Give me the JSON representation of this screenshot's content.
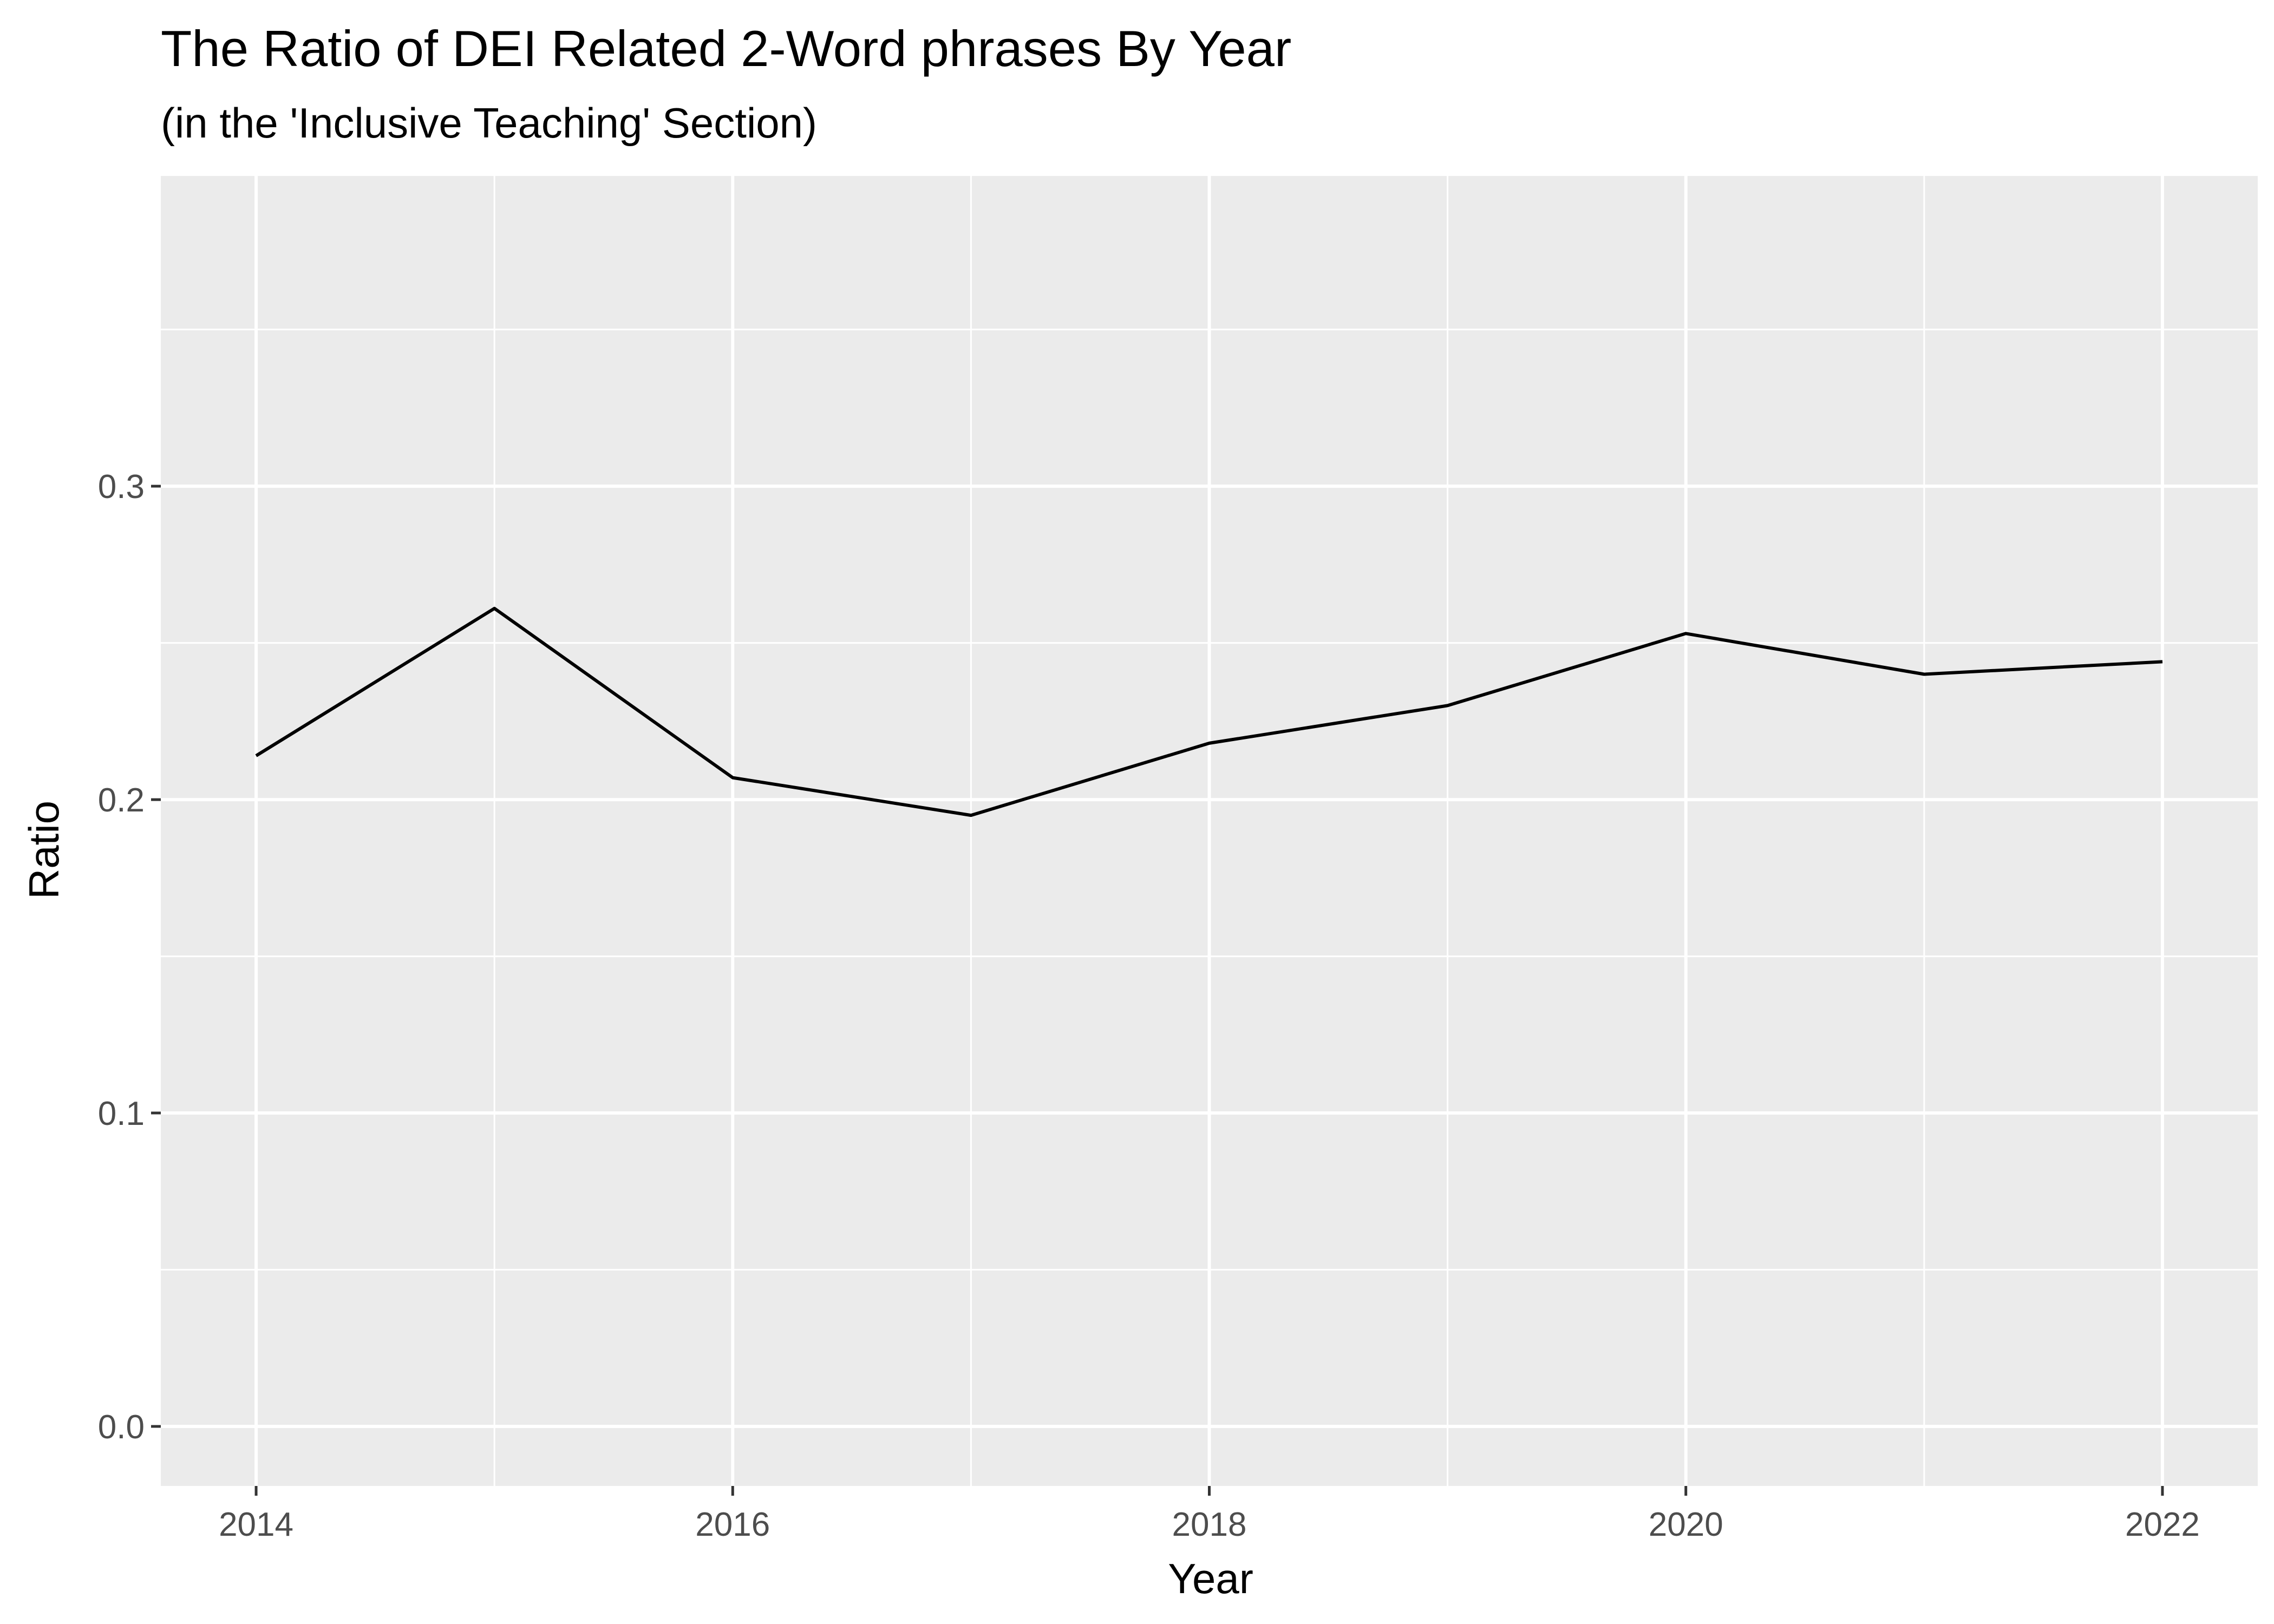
{
  "chart_data": {
    "type": "line",
    "title": "The Ratio of DEI Related 2-Word phrases By Year",
    "subtitle": "(in the 'Inclusive Teaching' Section)",
    "xlabel": "Year",
    "ylabel": "Ratio",
    "x": [
      2014,
      2015,
      2016,
      2017,
      2018,
      2019,
      2020,
      2021,
      2022
    ],
    "series": [
      {
        "values": [
          0.214,
          0.261,
          0.207,
          0.195,
          0.218,
          0.23,
          0.253,
          0.24,
          0.244
        ]
      }
    ],
    "x_ticks": [
      2014,
      2016,
      2018,
      2020,
      2022
    ],
    "x_tick_labels": [
      "2014",
      "2016",
      "2018",
      "2020",
      "2022"
    ],
    "y_ticks": [
      0.0,
      0.1,
      0.2,
      0.3
    ],
    "y_tick_labels": [
      "0.0",
      "0.1",
      "0.2",
      "0.3"
    ],
    "xlim": [
      2013.6,
      2022.4
    ],
    "ylim": [
      -0.019,
      0.399
    ],
    "grid": true,
    "colors": {
      "panel": "#ebebeb",
      "grid": "#ffffff",
      "line": "#000000",
      "tick_text": "#4d4d4d"
    }
  }
}
